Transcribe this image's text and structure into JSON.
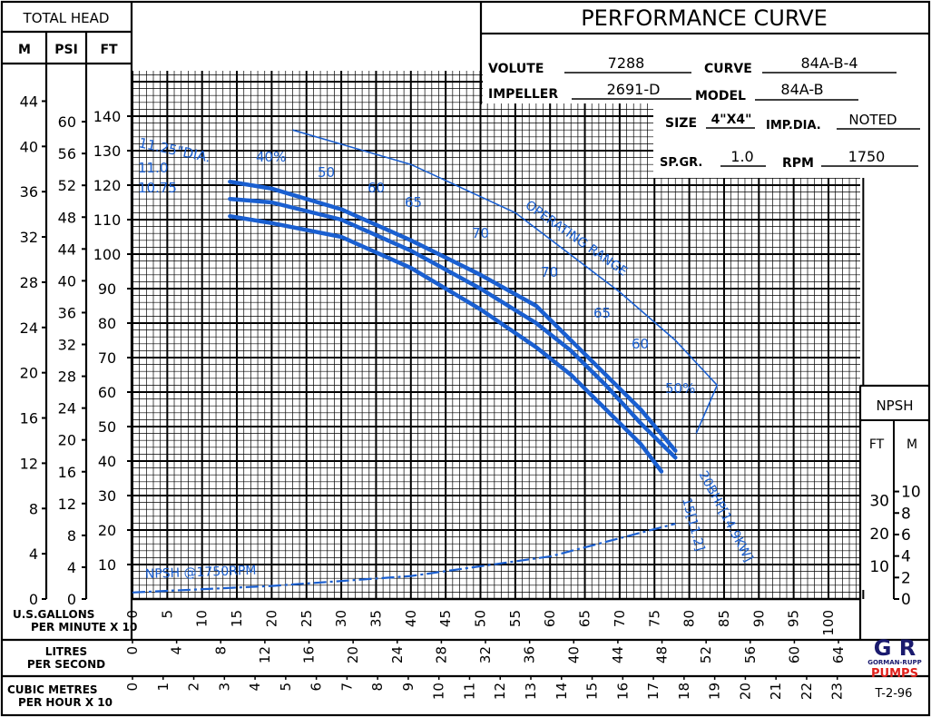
{
  "header": {
    "title": "PERFORMANCE CURVE",
    "volute_label": "VOLUTE",
    "volute": "7288",
    "curve_label": "CURVE",
    "curve": "84A-B-4",
    "impeller_label": "IMPELLER",
    "impeller": "2691-D",
    "model_label": "MODEL",
    "model": "84A-B",
    "size_label": "SIZE",
    "size": "4\"X4\"",
    "impdia_label": "IMP.DIA.",
    "impdia": "NOTED",
    "spgr_label": "SP.GR.",
    "spgr": "1.0",
    "rpm_label": "RPM",
    "rpm": "1750"
  },
  "left_axes": {
    "title": "TOTAL HEAD",
    "m_label": "M",
    "psi_label": "PSI",
    "ft_label": "FT",
    "m_ticks": [
      "0",
      "4",
      "8",
      "12",
      "16",
      "20",
      "24",
      "28",
      "32",
      "36",
      "40",
      "44"
    ],
    "psi_ticks": [
      "0",
      "4",
      "8",
      "12",
      "16",
      "20",
      "24",
      "28",
      "32",
      "36",
      "40",
      "44",
      "48",
      "52",
      "56",
      "60"
    ],
    "ft_ticks": [
      "10",
      "20",
      "30",
      "40",
      "50",
      "60",
      "70",
      "80",
      "90",
      "100",
      "110",
      "120",
      "130",
      "140"
    ]
  },
  "npsh_axis": {
    "title": "NPSH",
    "ft_label": "FT",
    "m_label": "M",
    "ft_ticks": [
      "10",
      "20",
      "30"
    ],
    "m_ticks": [
      "0",
      "2",
      "4",
      "6",
      "8",
      "10"
    ]
  },
  "bottom_axes": {
    "gpm_label_1": "U.S.GALLONS",
    "gpm_label_2": "PER MINUTE X 10",
    "gpm_ticks": [
      "0",
      "5",
      "10",
      "15",
      "20",
      "25",
      "30",
      "35",
      "40",
      "45",
      "50",
      "55",
      "60",
      "65",
      "70",
      "75",
      "80",
      "85",
      "90",
      "95",
      "100"
    ],
    "lps_label_1": "LITRES",
    "lps_label_2": "PER SECOND",
    "lps_ticks": [
      "0",
      "4",
      "8",
      "12",
      "16",
      "20",
      "24",
      "28",
      "32",
      "36",
      "40",
      "44",
      "48",
      "52",
      "56",
      "60",
      "64"
    ],
    "cmh_label_1": "CUBIC METRES",
    "cmh_label_2": "PER HOUR X 10",
    "cmh_ticks": [
      "0",
      "1",
      "2",
      "3",
      "4",
      "5",
      "6",
      "7",
      "8",
      "9",
      "10",
      "11",
      "12",
      "13",
      "14",
      "15",
      "16",
      "17",
      "18",
      "19",
      "20",
      "21",
      "22",
      "23"
    ]
  },
  "logo": {
    "text_top": "G R",
    "text_mid": "GORMAN-RUPP",
    "text_bottom": "PUMPS",
    "colors": {
      "dark": "#1a1a6e",
      "red": "#e0201b"
    }
  },
  "drawing_no": "T-2-96",
  "colors": {
    "grid": "#000000",
    "curve": "#1a5fd0"
  },
  "chart_data": {
    "type": "line",
    "x_unit": "U.S. gallons per minute x 10",
    "y_unit": "total head, FT",
    "xlim": [
      0,
      105
    ],
    "ylim": [
      0,
      150
    ],
    "series": [
      {
        "name": "11.25\"DIA.",
        "x": [
          14,
          20,
          30,
          40,
          50,
          58,
          63,
          68,
          73,
          78
        ],
        "y": [
          121,
          119,
          113,
          104,
          94,
          85,
          75,
          65,
          55,
          43
        ]
      },
      {
        "name": "11.0",
        "x": [
          14,
          20,
          30,
          40,
          50,
          58,
          63,
          68,
          73,
          78
        ],
        "y": [
          116,
          115,
          110,
          101,
          90,
          80,
          72,
          62,
          51,
          41
        ]
      },
      {
        "name": "10.75",
        "x": [
          14,
          20,
          30,
          40,
          50,
          58,
          63,
          68,
          73,
          76
        ],
        "y": [
          111,
          109,
          105,
          96,
          84,
          73,
          65,
          55,
          45,
          37
        ]
      },
      {
        "name": "OPERATING RANGE",
        "x": [
          23,
          40,
          55,
          70,
          78,
          84,
          81
        ],
        "y": [
          136,
          126,
          112,
          89,
          75,
          62,
          48
        ]
      },
      {
        "name": "NPSH @1750RPM",
        "x": [
          0,
          20,
          40,
          60,
          78
        ],
        "y_npsh_ft": [
          2,
          4,
          7,
          13,
          23
        ]
      }
    ],
    "efficiency_labels": [
      "40%",
      "50",
      "60",
      "65",
      "70",
      "70",
      "65",
      "60",
      "50%"
    ],
    "power_labels": [
      "20BHP[14.9KW]",
      "15[11.2]"
    ]
  }
}
